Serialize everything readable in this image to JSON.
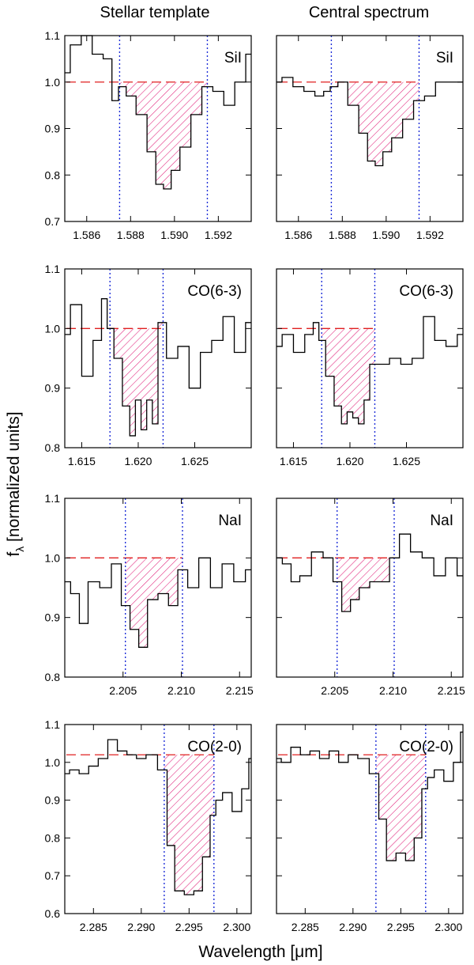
{
  "figure": {
    "column_titles": [
      "Stellar template",
      "Central spectrum"
    ],
    "ylabel_main": "f",
    "ylabel_sub": "λ",
    "ylabel_rest": " [normalized units]",
    "xlabel": "Wavelength [μm]"
  },
  "chart_data": [
    {
      "type": "line",
      "name": "SiI-stellar",
      "title": "SiI",
      "column": "Stellar template",
      "row": 1,
      "xlim": [
        1.585,
        1.5935
      ],
      "ylim": [
        0.7,
        1.1
      ],
      "xticks": [
        "1.586",
        "1.588",
        "1.590",
        "1.592"
      ],
      "yticks": [
        "0.7",
        "0.8",
        "0.9",
        "1.0",
        "1.1"
      ],
      "continuum": 1.0,
      "band": [
        1.5875,
        1.5915
      ],
      "hatched_region": [
        1.5875,
        1.5915
      ],
      "x": [
        1.585,
        1.5855,
        1.586,
        1.5865,
        1.587,
        1.5873,
        1.5876,
        1.588,
        1.5885,
        1.589,
        1.5893,
        1.5897,
        1.59,
        1.5905,
        1.591,
        1.5915,
        1.592,
        1.5925,
        1.593,
        1.5935
      ],
      "y": [
        1.02,
        1.08,
        1.1,
        1.06,
        1.05,
        0.96,
        0.99,
        0.97,
        0.93,
        0.85,
        0.78,
        0.77,
        0.81,
        0.86,
        0.93,
        0.99,
        0.98,
        0.95,
        1.0,
        1.06
      ]
    },
    {
      "type": "line",
      "name": "SiI-central",
      "title": "SiI",
      "column": "Central spectrum",
      "row": 1,
      "xlim": [
        1.585,
        1.5935
      ],
      "ylim": [
        0.7,
        1.1
      ],
      "xticks": [
        "1.586",
        "1.588",
        "1.590",
        "1.592"
      ],
      "yticks": [
        "0.7",
        "0.8",
        "0.9",
        "1.0",
        "1.1"
      ],
      "continuum": 1.0,
      "band": [
        1.5875,
        1.5915
      ],
      "hatched_region": [
        1.5875,
        1.5915
      ],
      "x": [
        1.585,
        1.5855,
        1.586,
        1.5865,
        1.587,
        1.5873,
        1.5876,
        1.588,
        1.5885,
        1.589,
        1.5893,
        1.5897,
        1.59,
        1.5905,
        1.591,
        1.5915,
        1.592,
        1.5925,
        1.593,
        1.5935
      ],
      "y": [
        1.0,
        1.01,
        0.99,
        0.98,
        0.97,
        0.98,
        0.99,
        1.0,
        0.95,
        0.89,
        0.83,
        0.82,
        0.85,
        0.88,
        0.92,
        0.96,
        0.97,
        1.0,
        1.0,
        1.0
      ]
    },
    {
      "type": "line",
      "name": "CO63-stellar",
      "title": "CO(6-3)",
      "column": "Stellar template",
      "row": 2,
      "xlim": [
        1.6135,
        1.63
      ],
      "ylim": [
        0.8,
        1.1
      ],
      "xticks": [
        "1.615",
        "1.620",
        "1.625"
      ],
      "yticks": [
        "0.8",
        "0.9",
        "1.0",
        "1.1"
      ],
      "continuum": 1.0,
      "band": [
        1.6175,
        1.6222
      ],
      "hatched_region": [
        1.6175,
        1.6222
      ],
      "x": [
        1.6135,
        1.6145,
        1.6155,
        1.6165,
        1.617,
        1.6175,
        1.6182,
        1.619,
        1.6195,
        1.62,
        1.6205,
        1.621,
        1.6215,
        1.622,
        1.623,
        1.624,
        1.625,
        1.626,
        1.627,
        1.628,
        1.629,
        1.63
      ],
      "y": [
        0.99,
        1.04,
        0.92,
        0.98,
        1.05,
        1.0,
        0.95,
        0.87,
        0.82,
        0.88,
        0.83,
        0.88,
        0.84,
        1.01,
        0.95,
        0.97,
        0.9,
        0.96,
        0.98,
        1.02,
        0.96,
        1.01
      ]
    },
    {
      "type": "line",
      "name": "CO63-central",
      "title": "CO(6-3)",
      "column": "Central spectrum",
      "row": 2,
      "xlim": [
        1.6135,
        1.63
      ],
      "ylim": [
        0.8,
        1.1
      ],
      "xticks": [
        "1.615",
        "1.620",
        "1.625"
      ],
      "yticks": [
        "0.8",
        "0.9",
        "1.0",
        "1.1"
      ],
      "continuum": 1.0,
      "band": [
        1.6175,
        1.6222
      ],
      "hatched_region": [
        1.6175,
        1.6222
      ],
      "x": [
        1.6135,
        1.6145,
        1.6155,
        1.6165,
        1.617,
        1.6175,
        1.6182,
        1.619,
        1.6195,
        1.62,
        1.6205,
        1.621,
        1.6215,
        1.622,
        1.623,
        1.624,
        1.625,
        1.626,
        1.627,
        1.628,
        1.629,
        1.63
      ],
      "y": [
        0.97,
        0.99,
        0.96,
        0.99,
        1.01,
        0.98,
        0.92,
        0.87,
        0.84,
        0.86,
        0.85,
        0.84,
        0.88,
        0.94,
        0.94,
        0.95,
        0.94,
        0.95,
        1.02,
        0.98,
        0.97,
        0.99
      ]
    },
    {
      "type": "line",
      "name": "NaI-stellar",
      "title": "NaI",
      "column": "Stellar template",
      "row": 3,
      "xlim": [
        2.2,
        2.216
      ],
      "ylim": [
        0.8,
        1.1
      ],
      "xticks": [
        "2.205",
        "2.210",
        "2.215"
      ],
      "yticks": [
        "0.8",
        "0.9",
        "1.0",
        "1.1"
      ],
      "continuum": 1.0,
      "band": [
        2.2052,
        2.2101
      ],
      "hatched_region": [
        2.2052,
        2.2101
      ],
      "x": [
        2.2,
        2.201,
        2.2015,
        2.2025,
        2.2035,
        2.2045,
        2.2052,
        2.206,
        2.2067,
        2.2075,
        2.2085,
        2.2093,
        2.2101,
        2.211,
        2.212,
        2.213,
        2.214,
        2.215,
        2.216
      ],
      "y": [
        0.96,
        0.94,
        0.89,
        0.96,
        0.95,
        0.99,
        0.92,
        0.88,
        0.85,
        0.93,
        0.94,
        0.92,
        0.98,
        0.95,
        1.0,
        0.95,
        0.99,
        0.96,
        0.98
      ]
    },
    {
      "type": "line",
      "name": "NaI-central",
      "title": "NaI",
      "column": "Central spectrum",
      "row": 3,
      "xlim": [
        2.2,
        2.216
      ],
      "ylim": [
        0.8,
        1.1
      ],
      "xticks": [
        "2.205",
        "2.210",
        "2.215"
      ],
      "yticks": [
        "0.8",
        "0.9",
        "1.0",
        "1.1"
      ],
      "continuum": 1.0,
      "band": [
        2.2052,
        2.2101
      ],
      "hatched_region": [
        2.2052,
        2.2101
      ],
      "x": [
        2.2,
        2.201,
        2.2015,
        2.2025,
        2.2035,
        2.2045,
        2.2052,
        2.206,
        2.2067,
        2.2075,
        2.2085,
        2.2093,
        2.2101,
        2.211,
        2.212,
        2.213,
        2.214,
        2.215,
        2.216
      ],
      "y": [
        1.0,
        0.99,
        0.96,
        0.97,
        1.01,
        1.0,
        0.96,
        0.91,
        0.93,
        0.95,
        0.96,
        0.96,
        1.0,
        1.04,
        1.01,
        1.0,
        0.97,
        1.0,
        0.97
      ]
    },
    {
      "type": "line",
      "name": "CO20-stellar",
      "title": "CO(2-0)",
      "column": "Stellar template",
      "row": 4,
      "xlim": [
        2.282,
        2.3015
      ],
      "ylim": [
        0.6,
        1.1
      ],
      "xticks": [
        "2.285",
        "2.290",
        "2.295",
        "2.300"
      ],
      "yticks": [
        "0.6",
        "0.7",
        "0.8",
        "0.9",
        "1.0",
        "1.1"
      ],
      "continuum": 1.02,
      "band": [
        2.2924,
        2.2976
      ],
      "hatched_region": [
        2.2924,
        2.2976
      ],
      "x": [
        2.282,
        2.283,
        2.284,
        2.285,
        2.286,
        2.287,
        2.288,
        2.289,
        2.29,
        2.291,
        2.2924,
        2.293,
        2.294,
        2.295,
        2.296,
        2.2968,
        2.2976,
        2.298,
        2.299,
        2.3,
        2.301,
        2.3015
      ],
      "y": [
        0.97,
        0.98,
        0.97,
        0.99,
        1.01,
        1.06,
        1.03,
        1.02,
        1.01,
        1.02,
        0.98,
        0.78,
        0.66,
        0.65,
        0.66,
        0.75,
        0.86,
        0.9,
        0.92,
        0.87,
        0.93,
        1.01
      ]
    },
    {
      "type": "line",
      "name": "CO20-central",
      "title": "CO(2-0)",
      "column": "Central spectrum",
      "row": 4,
      "xlim": [
        2.282,
        2.3015
      ],
      "ylim": [
        0.6,
        1.1
      ],
      "xticks": [
        "2.285",
        "2.290",
        "2.295",
        "2.300"
      ],
      "yticks": [
        "0.6",
        "0.7",
        "0.8",
        "0.9",
        "1.0",
        "1.1"
      ],
      "continuum": 1.02,
      "band": [
        2.2924,
        2.2976
      ],
      "hatched_region": [
        2.2924,
        2.2976
      ],
      "x": [
        2.282,
        2.283,
        2.284,
        2.285,
        2.286,
        2.287,
        2.288,
        2.289,
        2.29,
        2.291,
        2.2924,
        2.293,
        2.294,
        2.295,
        2.296,
        2.2968,
        2.2976,
        2.298,
        2.299,
        2.3,
        2.301,
        2.3015
      ],
      "y": [
        1.01,
        1.0,
        1.04,
        1.02,
        1.03,
        1.01,
        1.03,
        1.0,
        1.02,
        1.01,
        0.97,
        0.85,
        0.74,
        0.76,
        0.74,
        0.8,
        0.93,
        0.96,
        0.98,
        0.95,
        1.0,
        1.08
      ]
    }
  ]
}
